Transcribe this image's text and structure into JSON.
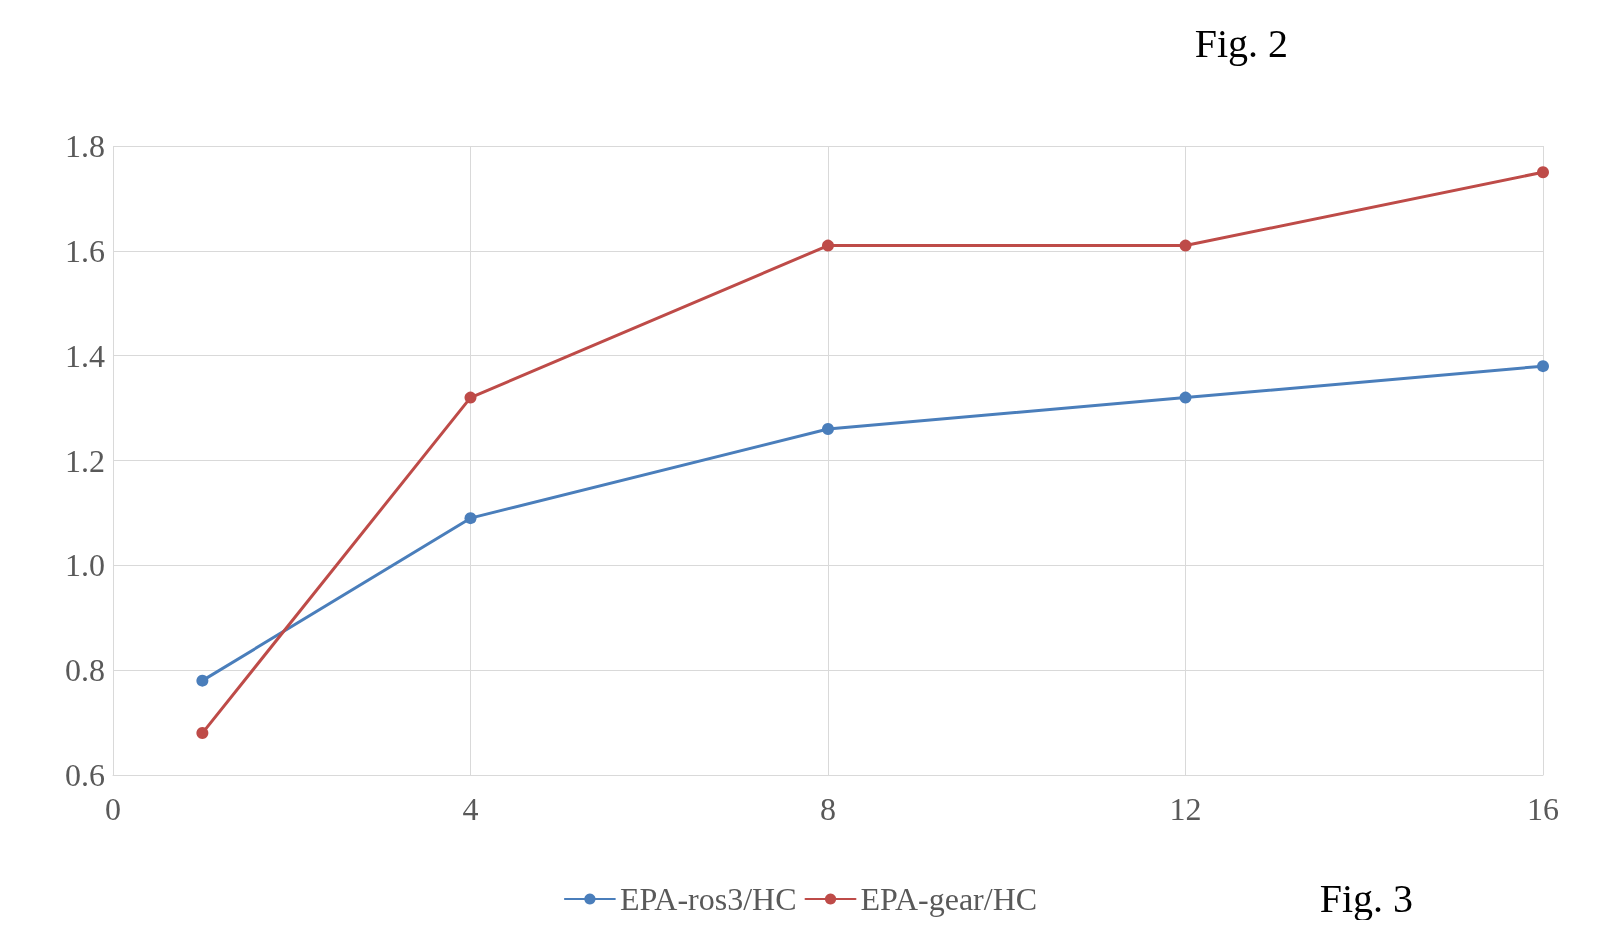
{
  "chart_data": {
    "type": "line",
    "title": "Fig. 2",
    "annotations": [
      "Fig. 3"
    ],
    "xlim": [
      0,
      16
    ],
    "xticks": [
      0,
      4,
      8,
      12,
      16
    ],
    "ylim": [
      0.6,
      1.8
    ],
    "yticks": [
      {
        "value": 0.6,
        "label": "0.6"
      },
      {
        "value": 0.8,
        "label": "0.8"
      },
      {
        "value": 1.0,
        "label": "1.0"
      },
      {
        "value": 1.2,
        "label": "1.2"
      },
      {
        "value": 1.4,
        "label": "1.4"
      },
      {
        "value": 1.6,
        "label": "1.6"
      },
      {
        "value": 1.8,
        "label": "1.8"
      }
    ],
    "x": [
      1,
      4,
      8,
      12,
      16
    ],
    "series": [
      {
        "name": "EPA-ros3/HC",
        "color": "#4a7ebb",
        "values": [
          0.78,
          1.09,
          1.26,
          1.32,
          1.38
        ]
      },
      {
        "name": "EPA-gear/HC",
        "color": "#be4b48",
        "values": [
          0.68,
          1.32,
          1.61,
          1.61,
          1.75
        ]
      }
    ],
    "grid": true,
    "legend": "bottom",
    "marker": "circle",
    "line_style": "solid"
  }
}
